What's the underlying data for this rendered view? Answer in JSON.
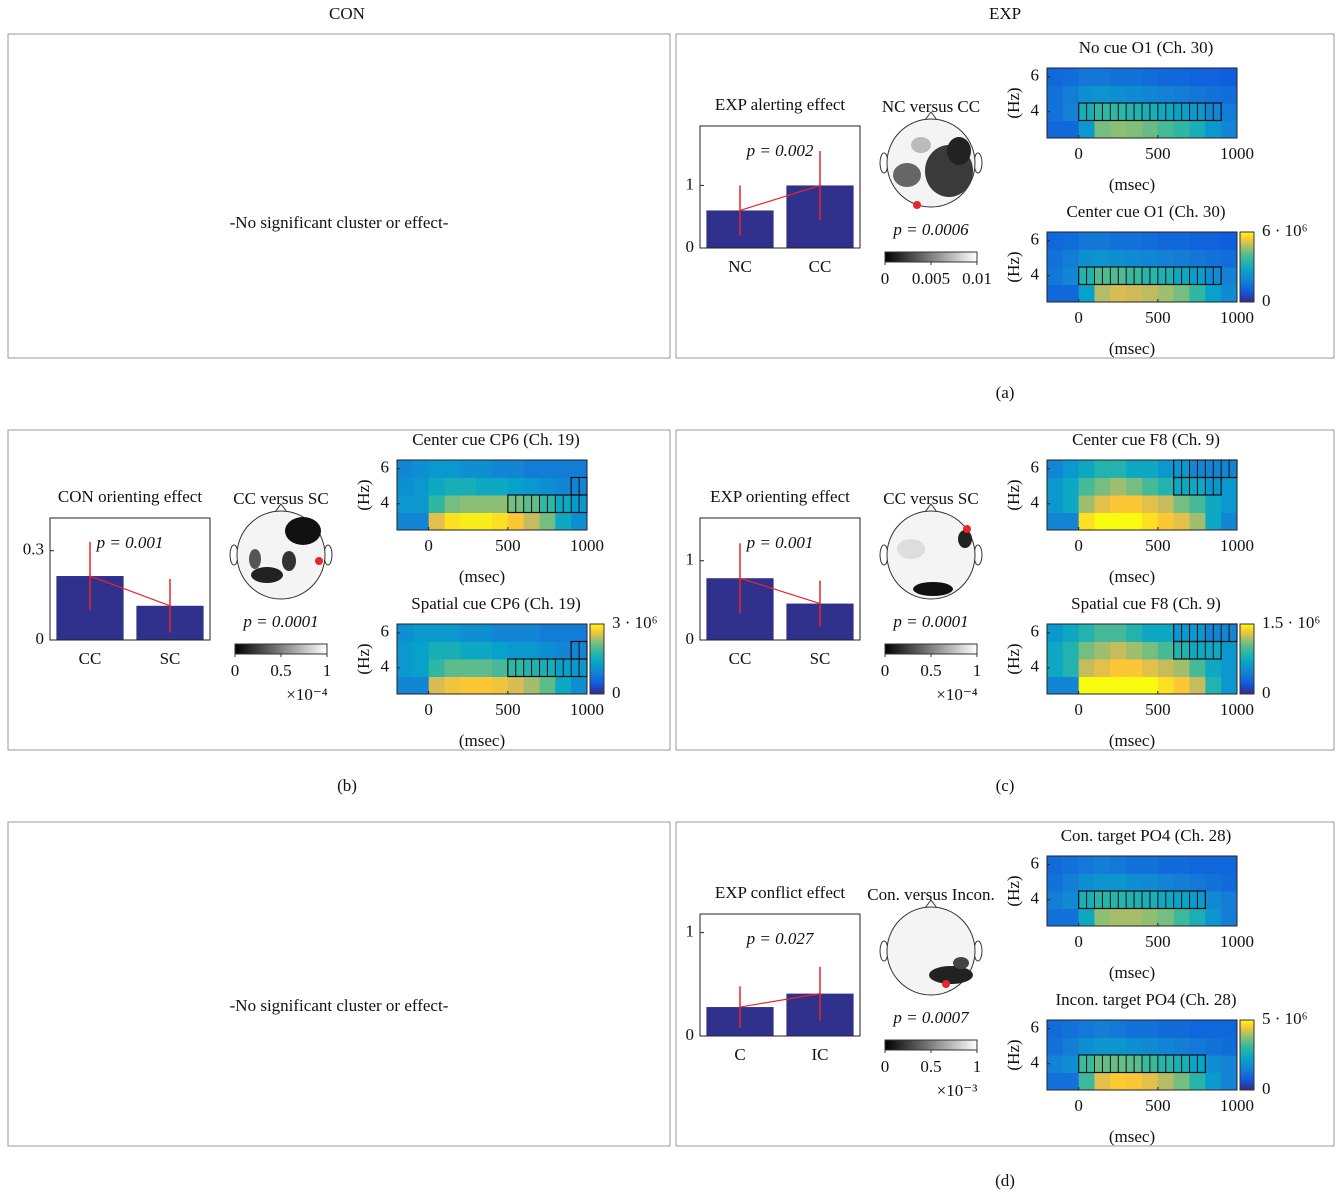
{
  "headers": [
    "CON",
    "EXP"
  ],
  "note": "-No significant cluster or effect-",
  "panel_labels": [
    "(a)",
    "(b)",
    "(c)",
    "(d)"
  ],
  "chart_data": [
    {
      "type": "bar",
      "title": "EXP alerting effect",
      "categories": [
        "NC",
        "CC"
      ],
      "values": [
        0.6,
        1.0
      ],
      "errors": [
        0.4,
        0.55
      ],
      "ylim": [
        0,
        1.95
      ],
      "yticks": [
        0,
        1
      ],
      "annotation": "p = 0.002",
      "color": "#30318c",
      "error_color": "#e8262a"
    },
    {
      "type": "topo",
      "title": "NC versus CC",
      "annotation": "p = 0.0006",
      "clim": [
        0,
        0.01
      ],
      "cticks": [
        0,
        0.005,
        0.01
      ]
    },
    {
      "type": "heatmap",
      "title": "No cue O1 (Ch. 30)",
      "x": [
        -150,
        -50,
        50,
        150,
        250,
        350,
        450,
        550,
        650,
        750,
        850,
        950
      ],
      "y": [
        3,
        4,
        5,
        6
      ],
      "values": [
        [
          1000000.0,
          1000000.0,
          2000000.0,
          3600000.0,
          3800000.0,
          3700000.0,
          3500000.0,
          3200000.0,
          3000000.0,
          2600000.0,
          2000000.0,
          1600000.0
        ],
        [
          1200000.0,
          1500000.0,
          2600000.0,
          3000000.0,
          3000000.0,
          2800000.0,
          2600000.0,
          2400000.0,
          2200000.0,
          2000000.0,
          1600000.0,
          1400000.0
        ],
        [
          1200000.0,
          1400000.0,
          1800000.0,
          1900000.0,
          1800000.0,
          1700000.0,
          1600000.0,
          1500000.0,
          1400000.0,
          1300000.0,
          1200000.0,
          1100000.0
        ],
        [
          1000000.0,
          1100000.0,
          1300000.0,
          1300000.0,
          1200000.0,
          1200000.0,
          1100000.0,
          1000000.0,
          1000000.0,
          900000.0,
          900000.0,
          800000.0
        ]
      ],
      "xlim": [
        -200,
        1000
      ],
      "ylim": [
        2.5,
        6.5
      ],
      "xticks": [
        0,
        500,
        1000
      ],
      "yticks": [
        4,
        6
      ],
      "xlabel": "(msec)",
      "ylabel": "(Hz)",
      "zlim": [
        0,
        6000000.0
      ],
      "clusters": [
        {
          "y": 4,
          "x": [
            0,
            900
          ]
        }
      ]
    },
    {
      "type": "heatmap",
      "title": "Center cue O1 (Ch. 30)",
      "x": [
        -150,
        -50,
        50,
        150,
        250,
        350,
        450,
        550,
        650,
        750,
        850,
        950
      ],
      "y": [
        3,
        4,
        5,
        6
      ],
      "values": [
        [
          1000000.0,
          1000000.0,
          2200000.0,
          4200000.0,
          4600000.0,
          4500000.0,
          4300000.0,
          4000000.0,
          3600000.0,
          3000000.0,
          2200000.0,
          1700000.0
        ],
        [
          1300000.0,
          1600000.0,
          2800000.0,
          3300000.0,
          3300000.0,
          3100000.0,
          2900000.0,
          2700000.0,
          2400000.0,
          2100000.0,
          1700000.0,
          1500000.0
        ],
        [
          1200000.0,
          1400000.0,
          1800000.0,
          1900000.0,
          1800000.0,
          1700000.0,
          1600000.0,
          1500000.0,
          1400000.0,
          1300000.0,
          1200000.0,
          1100000.0
        ],
        [
          1000000.0,
          1100000.0,
          1300000.0,
          1300000.0,
          1200000.0,
          1200000.0,
          1100000.0,
          1000000.0,
          1000000.0,
          900000.0,
          900000.0,
          800000.0
        ]
      ],
      "xlim": [
        -200,
        1000
      ],
      "ylim": [
        2.5,
        6.5
      ],
      "xticks": [
        0,
        500,
        1000
      ],
      "yticks": [
        4,
        6
      ],
      "xlabel": "(msec)",
      "ylabel": "(Hz)",
      "zlim": [
        0,
        6000000.0
      ],
      "zticks": [
        0,
        {
          "value": 6000000.0,
          "label": "6 · 10⁶"
        }
      ],
      "clusters": [
        {
          "y": 4,
          "x": [
            0,
            900
          ]
        }
      ]
    },
    {
      "type": "bar",
      "title": "CON orienting effect",
      "categories": [
        "CC",
        "SC"
      ],
      "values": [
        0.215,
        0.115
      ],
      "errors": [
        0.115,
        0.09
      ],
      "ylim": [
        0,
        0.41
      ],
      "yticks": [
        0,
        0.3
      ],
      "annotation": "p = 0.001",
      "color": "#30318c",
      "error_color": "#e8262a"
    },
    {
      "type": "topo",
      "title": "CC versus SC",
      "annotation": "p = 0.0001",
      "clim": [
        0,
        1
      ],
      "cticks": [
        0,
        0.5,
        1
      ],
      "scale_label": "×10⁻⁴"
    },
    {
      "type": "heatmap",
      "title": "Center cue CP6 (Ch. 19)",
      "x": [
        -150,
        -50,
        50,
        150,
        250,
        350,
        450,
        550,
        650,
        750,
        850,
        950
      ],
      "y": [
        3,
        4,
        5,
        6
      ],
      "values": [
        [
          800000.0,
          800000.0,
          2400000.0,
          2800000.0,
          2900000.0,
          2900000.0,
          2800000.0,
          2600000.0,
          2200000.0,
          1800000.0,
          1200000.0,
          900000.0
        ],
        [
          1000000.0,
          1000000.0,
          1500000.0,
          1800000.0,
          1900000.0,
          1900000.0,
          1900000.0,
          1800000.0,
          1700000.0,
          1500000.0,
          1200000.0,
          1000000.0
        ],
        [
          900000.0,
          1000000.0,
          1200000.0,
          1300000.0,
          1300000.0,
          1200000.0,
          1200000.0,
          1100000.0,
          1000000.0,
          900000.0,
          800000.0,
          800000.0
        ],
        [
          800000.0,
          900000.0,
          1000000.0,
          1000000.0,
          900000.0,
          900000.0,
          800000.0,
          800000.0,
          700000.0,
          700000.0,
          700000.0,
          700000.0
        ]
      ],
      "xlim": [
        -200,
        1000
      ],
      "ylim": [
        2.5,
        6.5
      ],
      "xticks": [
        0,
        500,
        1000
      ],
      "yticks": [
        4,
        6
      ],
      "xlabel": "(msec)",
      "ylabel": "(Hz)",
      "zlim": [
        0,
        3000000.0
      ],
      "clusters": [
        {
          "y": 4,
          "x": [
            500,
            1000
          ]
        },
        {
          "y": 5,
          "x": [
            900,
            1000
          ]
        }
      ]
    },
    {
      "type": "heatmap",
      "title": "Spatial cue CP6 (Ch. 19)",
      "x": [
        -150,
        -50,
        50,
        150,
        250,
        350,
        450,
        550,
        650,
        750,
        850,
        950
      ],
      "y": [
        3,
        4,
        5,
        6
      ],
      "values": [
        [
          800000.0,
          800000.0,
          2300000.0,
          2500000.0,
          2600000.0,
          2600000.0,
          2500000.0,
          2300000.0,
          2000000.0,
          1700000.0,
          1200000.0,
          900000.0
        ],
        [
          1000000.0,
          1100000.0,
          1500000.0,
          1700000.0,
          1700000.0,
          1700000.0,
          1600000.0,
          1500000.0,
          1400000.0,
          1300000.0,
          1100000.0,
          1000000.0
        ],
        [
          1000000.0,
          1100000.0,
          1300000.0,
          1300000.0,
          1200000.0,
          1200000.0,
          1100000.0,
          1000000.0,
          1000000.0,
          900000.0,
          800000.0,
          800000.0
        ],
        [
          900000.0,
          1000000.0,
          1000000.0,
          1000000.0,
          900000.0,
          900000.0,
          800000.0,
          800000.0,
          800000.0,
          700000.0,
          700000.0,
          700000.0
        ]
      ],
      "xlim": [
        -200,
        1000
      ],
      "ylim": [
        2.5,
        6.5
      ],
      "xticks": [
        0,
        500,
        1000
      ],
      "yticks": [
        4,
        6
      ],
      "xlabel": "(msec)",
      "ylabel": "(Hz)",
      "zlim": [
        0,
        3000000.0
      ],
      "zticks": [
        0,
        {
          "value": 3000000.0,
          "label": "3 · 10⁶"
        }
      ],
      "clusters": [
        {
          "y": 4,
          "x": [
            500,
            1000
          ]
        },
        {
          "y": 5,
          "x": [
            900,
            1000
          ]
        }
      ]
    },
    {
      "type": "bar",
      "title": "EXP orienting effect",
      "categories": [
        "CC",
        "SC"
      ],
      "values": [
        0.78,
        0.46
      ],
      "errors": [
        0.44,
        0.29
      ],
      "ylim": [
        0,
        1.54
      ],
      "yticks": [
        0,
        1
      ],
      "annotation": "p = 0.001",
      "color": "#30318c",
      "error_color": "#e8262a"
    },
    {
      "type": "topo",
      "title": "CC versus SC",
      "annotation": "p = 0.0001",
      "clim": [
        0,
        1
      ],
      "cticks": [
        0,
        0.5,
        1
      ],
      "scale_label": "×10⁻⁴"
    },
    {
      "type": "heatmap",
      "title": "Center cue F8 (Ch. 9)",
      "x": [
        -150,
        -50,
        50,
        150,
        250,
        350,
        450,
        550,
        650,
        750,
        850,
        950
      ],
      "y": [
        3,
        4,
        5,
        6
      ],
      "values": [
        [
          400000.0,
          400000.0,
          1400000.0,
          1500000.0,
          1500000.0,
          1500000.0,
          1400000.0,
          1300000.0,
          1200000.0,
          1000000.0,
          600000.0,
          400000.0
        ],
        [
          500000.0,
          600000.0,
          1000000.0,
          1200000.0,
          1300000.0,
          1300000.0,
          1200000.0,
          1100000.0,
          900000.0,
          800000.0,
          600000.0,
          500000.0
        ],
        [
          500000.0,
          600000.0,
          800000.0,
          900000.0,
          1000000.0,
          900000.0,
          800000.0,
          700000.0,
          600000.0,
          600000.0,
          500000.0,
          500000.0
        ],
        [
          400000.0,
          500000.0,
          600000.0,
          700000.0,
          700000.0,
          600000.0,
          600000.0,
          500000.0,
          500000.0,
          400000.0,
          400000.0,
          400000.0
        ]
      ],
      "xlim": [
        -200,
        1000
      ],
      "ylim": [
        2.5,
        6.5
      ],
      "xticks": [
        0,
        500,
        1000
      ],
      "yticks": [
        4,
        6
      ],
      "xlabel": "(msec)",
      "ylabel": "(Hz)",
      "zlim": [
        0,
        1500000.0
      ],
      "clusters": [
        {
          "y": 6,
          "x": [
            600,
            1000
          ]
        },
        {
          "y": 5,
          "x": [
            600,
            900
          ]
        }
      ]
    },
    {
      "type": "heatmap",
      "title": "Spatial cue F8 (Ch. 9)",
      "x": [
        -150,
        -50,
        50,
        150,
        250,
        350,
        450,
        550,
        650,
        750,
        850,
        950
      ],
      "y": [
        3,
        4,
        5,
        6
      ],
      "values": [
        [
          400000.0,
          400000.0,
          1500000.0,
          1500000.0,
          1500000.0,
          1500000.0,
          1500000.0,
          1400000.0,
          1300000.0,
          1100000.0,
          700000.0,
          500000.0
        ],
        [
          600000.0,
          700000.0,
          1100000.0,
          1200000.0,
          1300000.0,
          1300000.0,
          1200000.0,
          1100000.0,
          1000000.0,
          800000.0,
          600000.0,
          500000.0
        ],
        [
          600000.0,
          700000.0,
          900000.0,
          1000000.0,
          1100000.0,
          1000000.0,
          900000.0,
          800000.0,
          700000.0,
          600000.0,
          600000.0,
          500000.0
        ],
        [
          500000.0,
          600000.0,
          700000.0,
          800000.0,
          800000.0,
          700000.0,
          600000.0,
          600000.0,
          500000.0,
          500000.0,
          400000.0,
          400000.0
        ]
      ],
      "xlim": [
        -200,
        1000
      ],
      "ylim": [
        2.5,
        6.5
      ],
      "xticks": [
        0,
        500,
        1000
      ],
      "yticks": [
        4,
        6
      ],
      "xlabel": "(msec)",
      "ylabel": "(Hz)",
      "zlim": [
        0,
        1500000.0
      ],
      "zticks": [
        0,
        {
          "value": 1500000.0,
          "label": "1.5 · 10⁶"
        }
      ],
      "clusters": [
        {
          "y": 6,
          "x": [
            600,
            1000
          ]
        },
        {
          "y": 5,
          "x": [
            600,
            900
          ]
        }
      ]
    },
    {
      "type": "bar",
      "title": "EXP conflict effect",
      "categories": [
        "C",
        "IC"
      ],
      "values": [
        0.28,
        0.41
      ],
      "errors": [
        0.2,
        0.26
      ],
      "ylim": [
        0,
        1.18
      ],
      "yticks": [
        0,
        1
      ],
      "annotation": "p = 0.027",
      "color": "#30318c",
      "error_color": "#e8262a"
    },
    {
      "type": "topo",
      "title": "Con. versus Incon.",
      "annotation": "p = 0.0007",
      "clim": [
        0,
        1
      ],
      "cticks": [
        0,
        0.5,
        1
      ],
      "scale_label": "×10⁻³"
    },
    {
      "type": "heatmap",
      "title": "Con. target PO4 (Ch. 28)",
      "x": [
        -150,
        -50,
        50,
        150,
        250,
        350,
        450,
        550,
        650,
        750,
        850,
        950
      ],
      "y": [
        3,
        4,
        5,
        6
      ],
      "values": [
        [
          1000000.0,
          1000000.0,
          2000000.0,
          3200000.0,
          3400000.0,
          3400000.0,
          3200000.0,
          3000000.0,
          2600000.0,
          2200000.0,
          1600000.0,
          1200000.0
        ],
        [
          1200000.0,
          1400000.0,
          2200000.0,
          2400000.0,
          2400000.0,
          2300000.0,
          2200000.0,
          2000000.0,
          1900000.0,
          1700000.0,
          1400000.0,
          1200000.0
        ],
        [
          1000000.0,
          1200000.0,
          1500000.0,
          1600000.0,
          1600000.0,
          1500000.0,
          1400000.0,
          1300000.0,
          1200000.0,
          1100000.0,
          1000000.0,
          900000.0
        ],
        [
          900000.0,
          1000000.0,
          1100000.0,
          1200000.0,
          1100000.0,
          1000000.0,
          1000000.0,
          900000.0,
          900000.0,
          800000.0,
          800000.0,
          800000.0
        ]
      ],
      "xlim": [
        -200,
        1000
      ],
      "ylim": [
        2.5,
        6.5
      ],
      "xticks": [
        0,
        500,
        1000
      ],
      "yticks": [
        4,
        6
      ],
      "xlabel": "(msec)",
      "ylabel": "(Hz)",
      "zlim": [
        0,
        5000000.0
      ],
      "clusters": [
        {
          "y": 4,
          "x": [
            0,
            800
          ]
        }
      ]
    },
    {
      "type": "heatmap",
      "title": "Incon. target PO4 (Ch. 28)",
      "x": [
        -150,
        -50,
        50,
        150,
        250,
        350,
        450,
        550,
        650,
        750,
        850,
        950
      ],
      "y": [
        3,
        4,
        5,
        6
      ],
      "values": [
        [
          1000000.0,
          1000000.0,
          2600000.0,
          4000000.0,
          4400000.0,
          4300000.0,
          4000000.0,
          3500000.0,
          3000000.0,
          2400000.0,
          1700000.0,
          1300000.0
        ],
        [
          1300000.0,
          1500000.0,
          2600000.0,
          2900000.0,
          2900000.0,
          2800000.0,
          2600000.0,
          2400000.0,
          2200000.0,
          1900000.0,
          1500000.0,
          1300000.0
        ],
        [
          1000000.0,
          1200000.0,
          1500000.0,
          1600000.0,
          1600000.0,
          1500000.0,
          1400000.0,
          1300000.0,
          1200000.0,
          1100000.0,
          1000000.0,
          900000.0
        ],
        [
          900000.0,
          1000000.0,
          1100000.0,
          1200000.0,
          1100000.0,
          1000000.0,
          1000000.0,
          900000.0,
          900000.0,
          800000.0,
          800000.0,
          800000.0
        ]
      ],
      "xlim": [
        -200,
        1000
      ],
      "ylim": [
        2.5,
        6.5
      ],
      "xticks": [
        0,
        500,
        1000
      ],
      "yticks": [
        4,
        6
      ],
      "xlabel": "(msec)",
      "ylabel": "(Hz)",
      "zlim": [
        0,
        5000000.0
      ],
      "zticks": [
        0,
        {
          "value": 5000000.0,
          "label": "5 · 10⁶"
        }
      ],
      "clusters": [
        {
          "y": 4,
          "x": [
            0,
            800
          ]
        }
      ]
    }
  ]
}
